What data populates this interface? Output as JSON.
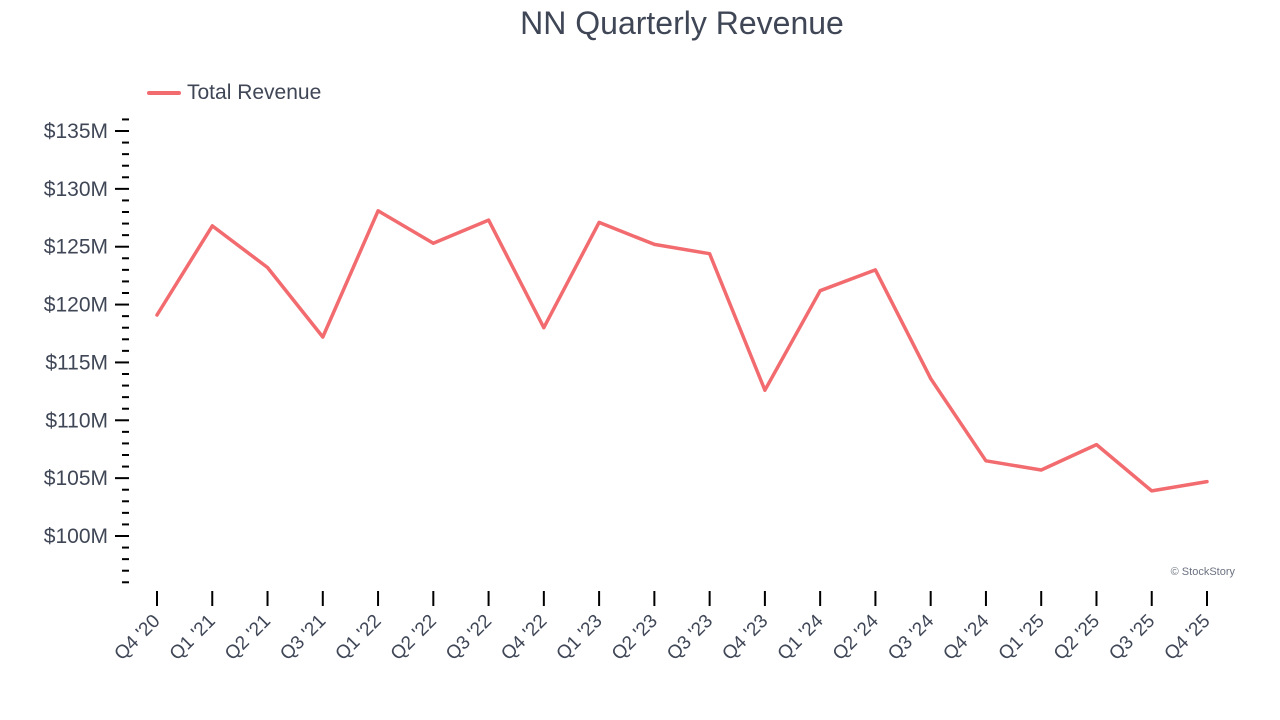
{
  "colors": {
    "line": "#f26b6f",
    "text": "#3f4656",
    "axis": "#000000"
  },
  "chart_data": {
    "type": "line",
    "title": "NN Quarterly Revenue",
    "xlabel": "",
    "ylabel": "",
    "credit": "© StockStory",
    "legend_position": "top-left",
    "grid": false,
    "ylim": [
      96,
      136
    ],
    "y_ticks": [
      {
        "value": 100,
        "label": "$100M"
      },
      {
        "value": 105,
        "label": "$105M"
      },
      {
        "value": 110,
        "label": "$110M"
      },
      {
        "value": 115,
        "label": "$115M"
      },
      {
        "value": 120,
        "label": "$120M"
      },
      {
        "value": 125,
        "label": "$125M"
      },
      {
        "value": 130,
        "label": "$130M"
      },
      {
        "value": 135,
        "label": "$135M"
      }
    ],
    "categories": [
      "Q4 '20",
      "Q1 '21",
      "Q2 '21",
      "Q3 '21",
      "Q1 '22",
      "Q2 '22",
      "Q3 '22",
      "Q4 '22",
      "Q1 '23",
      "Q2 '23",
      "Q3 '23",
      "Q4 '23",
      "Q1 '24",
      "Q2 '24",
      "Q3 '24",
      "Q4 '24",
      "Q1 '25",
      "Q2 '25",
      "Q3 '25",
      "Q4 '25"
    ],
    "series": [
      {
        "name": "Total Revenue",
        "values": [
          119.1,
          126.8,
          123.2,
          117.2,
          128.1,
          125.3,
          127.3,
          118.0,
          127.1,
          125.2,
          124.4,
          112.6,
          121.2,
          123.0,
          113.6,
          106.5,
          105.7,
          107.9,
          103.9,
          104.7
        ]
      }
    ]
  }
}
